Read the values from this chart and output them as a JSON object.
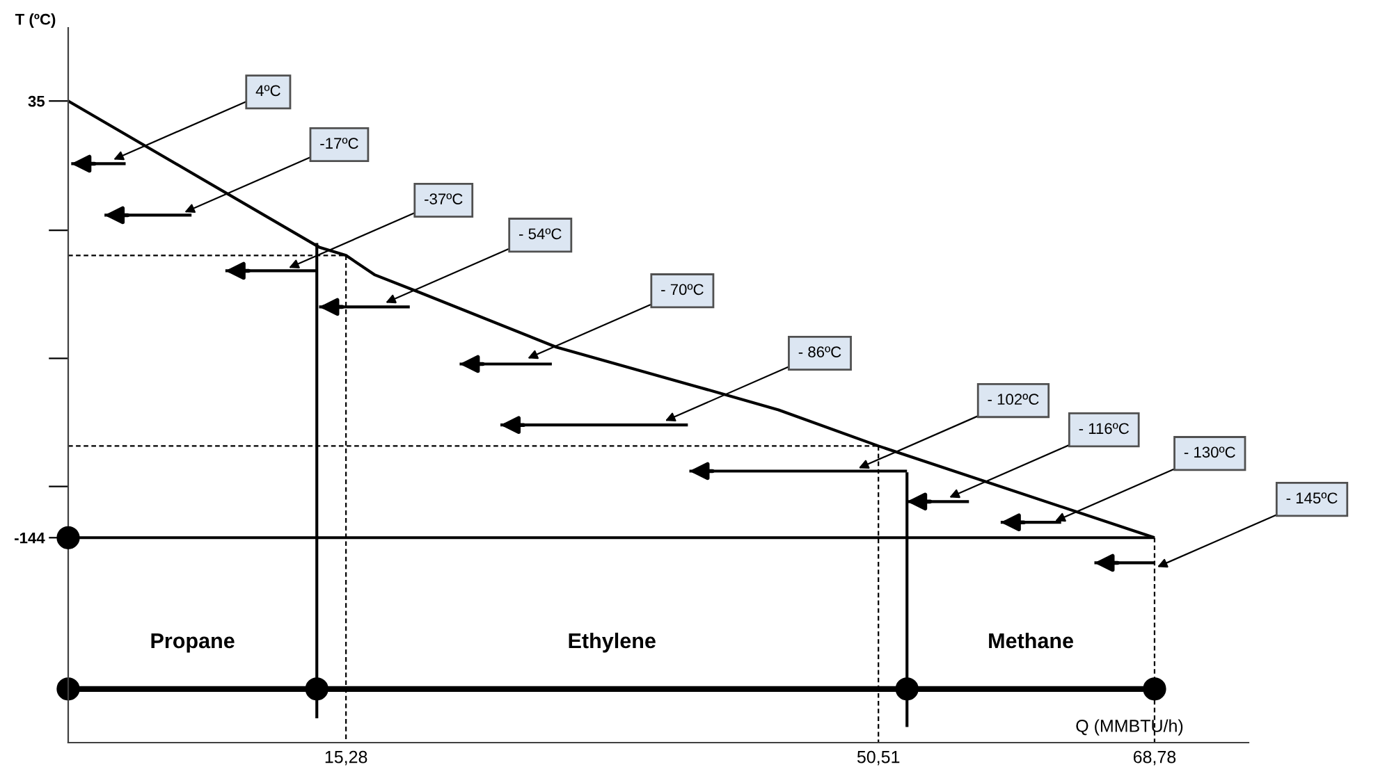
{
  "chart_data": {
    "type": "line",
    "xlabel": "Q (MMBTU/h)",
    "ylabel": "T (ºC)",
    "xlim": [
      -3.1,
      75
    ],
    "ylim": [
      -228,
      65
    ],
    "xticks": [
      {
        "value": 15.28,
        "label": "15,28"
      },
      {
        "value": 50.51,
        "label": "50,51"
      },
      {
        "value": 68.78,
        "label": "68,78"
      }
    ],
    "yticks": [
      35,
      {
        "value": -18,
        "label": null
      },
      {
        "value": -70.5,
        "label": null
      },
      {
        "value": -123,
        "label": null
      },
      -144
    ],
    "grid": false,
    "series": [
      {
        "color": "#000000",
        "x": [
          -3.1,
          13.5,
          15.28,
          17.2,
          20.0,
          29.2,
          38.4,
          43.9,
          50.51,
          68.78
        ],
        "values": [
          35,
          -24.9,
          -28.3,
          -36.3,
          -43.1,
          -65.9,
          -81.9,
          -91.6,
          -106.4,
          -144
        ]
      },
      {
        "color": "#000000",
        "line_style": "dashed",
        "x": [
          -3.1,
          15.28
        ],
        "values": [
          -28.3,
          -28.3
        ]
      },
      {
        "color": "#000000",
        "line_style": "dashed",
        "x": [
          15.28,
          15.28
        ],
        "values": [
          -28.3,
          -228
        ]
      },
      {
        "color": "#000000",
        "line_style": "dashed",
        "x": [
          -3.1,
          50.51
        ],
        "values": [
          -106.4,
          -106.4
        ]
      },
      {
        "color": "#000000",
        "line_style": "dashed",
        "x": [
          50.51,
          50.51
        ],
        "values": [
          -106.4,
          -228
        ]
      },
      {
        "color": "#000000",
        "line_style": "dashed",
        "x": [
          68.78,
          68.78
        ],
        "values": [
          -144,
          -228
        ]
      },
      {
        "color": "#000000",
        "x": [
          13.35,
          13.35
        ],
        "values": [
          -23.2,
          -218
        ]
      },
      {
        "color": "#000000",
        "x": [
          52.4,
          52.4
        ],
        "values": [
          -117.2,
          -221.6
        ]
      },
      {
        "color": "#000000",
        "x": [
          -3.1,
          68.78
        ],
        "values": [
          -144,
          -144
        ]
      },
      {
        "type": "scatter",
        "color": "#000000",
        "marker": "circle",
        "x": [
          -3.1
        ],
        "values": [
          -144
        ]
      },
      {
        "color": "#000000",
        "marker": "circle",
        "x": [
          -3.1,
          13.35,
          52.4,
          68.78
        ],
        "values": [
          -206,
          -206,
          -206,
          -206
        ]
      },
      {
        "color": "#000000",
        "x": [
          0.7,
          -2.9
        ],
        "values": [
          9.3,
          9.3
        ]
      },
      {
        "color": "#000000",
        "x": [
          5.06,
          -0.7
        ],
        "values": [
          -11.8,
          -11.8
        ]
      },
      {
        "color": "#000000",
        "x": [
          13.35,
          7.3
        ],
        "values": [
          -34.6,
          -34.6
        ]
      },
      {
        "color": "#000000",
        "x": [
          19.5,
          13.5
        ],
        "values": [
          -49.4,
          -49.4
        ]
      },
      {
        "color": "#000000",
        "x": [
          28.9,
          22.8
        ],
        "values": [
          -72.8,
          -72.8
        ]
      },
      {
        "color": "#000000",
        "x": [
          37.9,
          25.5
        ],
        "values": [
          -97.8,
          -97.8
        ]
      },
      {
        "color": "#000000",
        "x": [
          52.4,
          38.0
        ],
        "values": [
          -116.7,
          -116.7
        ]
      },
      {
        "color": "#000000",
        "x": [
          56.5,
          52.4
        ],
        "values": [
          -129.2,
          -129.2
        ]
      },
      {
        "color": "#000000",
        "x": [
          62.6,
          58.6
        ],
        "values": [
          -137.7,
          -137.7
        ]
      },
      {
        "color": "#000000",
        "x": [
          68.78,
          64.8
        ],
        "values": [
          -154.3,
          -154.3
        ]
      }
    ],
    "annotations": [
      {
        "text": "4ºC",
        "x": -0.1,
        "y": 11
      },
      {
        "text": "-17ºC",
        "x": 4.6,
        "y": -10.6
      },
      {
        "text": "-37ºC",
        "x": 11.5,
        "y": -33.4
      },
      {
        "text": "- 54ºC",
        "x": 17.9,
        "y": -47.7
      },
      {
        "text": "- 70ºC",
        "x": 27.3,
        "y": -70.5
      },
      {
        "text": "- 86ºC",
        "x": 36.4,
        "y": -96.1
      },
      {
        "text": "- 102ºC",
        "x": 49.2,
        "y": -115.5
      },
      {
        "text": "- 116ºC",
        "x": 55.2,
        "y": -127.5
      },
      {
        "text": "- 130ºC",
        "x": 62.2,
        "y": -137.2
      },
      {
        "text": "- 145ºC",
        "x": 68.96,
        "y": -156
      },
      "Propane",
      "Ethylene",
      "Methane"
    ]
  }
}
